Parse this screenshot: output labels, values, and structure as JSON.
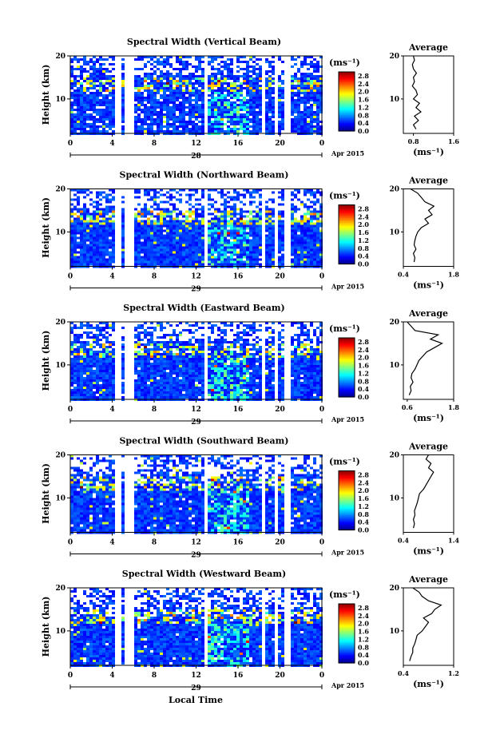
{
  "figure": {
    "xlabel": "Local Time",
    "date_label": "Apr 2015"
  },
  "chart_data": [
    {
      "type": "heatmap",
      "title": "Spectral Width (Vertical Beam)",
      "ylabel": "Height (km)",
      "ylim": [
        2,
        20
      ],
      "yticks": [
        "20",
        "10"
      ],
      "x_ticks": [
        "0",
        "4",
        "8",
        "12",
        "16",
        "20",
        "0"
      ],
      "xlim": [
        0,
        24
      ],
      "day_label": "28",
      "colorbar": {
        "unit": "(ms⁻¹)",
        "ticks": [
          "2.8",
          "2.4",
          "2.0",
          "1.6",
          "1.2",
          "0.8",
          "0.4",
          "0.0"
        ],
        "range": [
          0.0,
          3.0
        ]
      },
      "gaps": [
        [
          4.0,
          4.6
        ],
        [
          5.1,
          5.9
        ],
        [
          12.7,
          13.0
        ],
        [
          18.0,
          18.3
        ],
        [
          19.5,
          19.8
        ],
        [
          20.4,
          20.8
        ]
      ],
      "average_profile": {
        "title": "Average",
        "xlabel": "(ms⁻¹)",
        "xticks": [
          "0.8",
          "1.6"
        ],
        "xlim": [
          0.6,
          1.6
        ],
        "yticks": [
          "20",
          "10"
        ],
        "height": [
          3,
          4,
          5,
          6,
          7,
          8,
          9,
          10,
          11,
          12,
          13,
          14,
          15,
          16,
          17,
          18,
          19,
          20
        ],
        "value": [
          0.85,
          0.8,
          0.9,
          0.82,
          0.95,
          0.85,
          0.92,
          0.8,
          0.88,
          0.85,
          0.78,
          0.82,
          0.8,
          0.86,
          0.8,
          0.78,
          0.82,
          0.8
        ]
      }
    },
    {
      "type": "heatmap",
      "title": "Spectral Width (Northward Beam)",
      "ylabel": "Height (km)",
      "ylim": [
        2,
        20
      ],
      "yticks": [
        "20",
        "10"
      ],
      "x_ticks": [
        "0",
        "4",
        "8",
        "12",
        "16",
        "20",
        "0"
      ],
      "xlim": [
        0,
        24
      ],
      "day_label": "29",
      "colorbar": {
        "unit": "(ms⁻¹)",
        "ticks": [
          "2.8",
          "2.4",
          "2.0",
          "1.6",
          "1.2",
          "0.8",
          "0.4",
          "0.0"
        ],
        "range": [
          0.0,
          3.0
        ]
      },
      "gaps": [
        [
          4.0,
          4.6
        ],
        [
          5.1,
          5.9
        ],
        [
          12.5,
          12.9
        ],
        [
          18.0,
          18.3
        ],
        [
          19.3,
          19.6
        ],
        [
          20.4,
          20.8
        ]
      ],
      "average_profile": {
        "title": "Average",
        "xlabel": "(ms⁻¹)",
        "xticks": [
          "0.4",
          "1.8"
        ],
        "xlim": [
          0.4,
          1.8
        ],
        "yticks": [
          "20",
          "10"
        ],
        "height": [
          3,
          4,
          5,
          6,
          7,
          8,
          9,
          10,
          11,
          12,
          13,
          14,
          15,
          16,
          17,
          18,
          19,
          20
        ],
        "value": [
          0.7,
          0.72,
          0.68,
          0.75,
          0.7,
          0.72,
          0.75,
          0.8,
          0.9,
          1.1,
          1.0,
          1.2,
          1.1,
          1.25,
          1.0,
          0.9,
          0.8,
          0.6
        ]
      }
    },
    {
      "type": "heatmap",
      "title": "Spectral Width (Eastward Beam)",
      "ylabel": "Height (km)",
      "ylim": [
        2,
        20
      ],
      "yticks": [
        "20",
        "10"
      ],
      "x_ticks": [
        "0",
        "4",
        "8",
        "12",
        "16",
        "20",
        "0"
      ],
      "xlim": [
        0,
        24
      ],
      "day_label": "29",
      "colorbar": {
        "unit": "(ms⁻¹)",
        "ticks": [
          "2.8",
          "2.4",
          "2.0",
          "1.6",
          "1.2",
          "0.8",
          "0.4",
          "0.0"
        ],
        "range": [
          0.0,
          3.0
        ]
      },
      "gaps": [
        [
          4.0,
          4.6
        ],
        [
          5.1,
          5.9
        ],
        [
          12.5,
          12.9
        ],
        [
          18.0,
          18.3
        ],
        [
          19.3,
          19.6
        ],
        [
          20.4,
          20.8
        ]
      ],
      "average_profile": {
        "title": "Average",
        "xlabel": "(ms⁻¹)",
        "xticks": [
          "0.6",
          "1.8"
        ],
        "xlim": [
          0.5,
          1.8
        ],
        "yticks": [
          "20",
          "10"
        ],
        "height": [
          3,
          4,
          5,
          6,
          7,
          8,
          9,
          10,
          11,
          12,
          13,
          14,
          15,
          16,
          17,
          18,
          19,
          20
        ],
        "value": [
          0.65,
          0.7,
          0.68,
          0.75,
          0.7,
          0.72,
          0.8,
          0.85,
          0.9,
          1.0,
          1.1,
          1.3,
          1.5,
          1.2,
          1.4,
          0.8,
          0.7,
          0.6
        ]
      }
    },
    {
      "type": "heatmap",
      "title": "Spectral Width (Southward Beam)",
      "ylabel": "Height (km)",
      "ylim": [
        2,
        20
      ],
      "yticks": [
        "20",
        "10"
      ],
      "x_ticks": [
        "0",
        "4",
        "8",
        "12",
        "16",
        "20",
        "0"
      ],
      "xlim": [
        0,
        24
      ],
      "day_label": "29",
      "colorbar": {
        "unit": "(ms⁻¹)",
        "ticks": [
          "2.8",
          "2.4",
          "2.0",
          "1.6",
          "1.2",
          "0.8",
          "0.4",
          "0.0"
        ],
        "range": [
          0.0,
          3.0
        ]
      },
      "gaps": [
        [
          4.0,
          4.6
        ],
        [
          5.1,
          5.9
        ],
        [
          12.5,
          12.9
        ],
        [
          18.0,
          18.3
        ],
        [
          19.3,
          19.6
        ],
        [
          20.4,
          20.8
        ]
      ],
      "average_profile": {
        "title": "Average",
        "xlabel": "(ms⁻¹)",
        "xticks": [
          "0.4",
          "1.4"
        ],
        "xlim": [
          0.4,
          1.4
        ],
        "yticks": [
          "20",
          "10"
        ],
        "height": [
          3,
          4,
          5,
          6,
          7,
          8,
          9,
          10,
          11,
          12,
          13,
          14,
          15,
          16,
          17,
          18,
          19,
          20
        ],
        "value": [
          0.6,
          0.62,
          0.6,
          0.63,
          0.62,
          0.65,
          0.68,
          0.7,
          0.72,
          0.8,
          0.85,
          0.9,
          0.95,
          1.0,
          0.9,
          0.95,
          0.85,
          0.9
        ]
      }
    },
    {
      "type": "heatmap",
      "title": "Spectral Width (Westward Beam)",
      "ylabel": "Height (km)",
      "ylim": [
        2,
        20
      ],
      "yticks": [
        "20",
        "10"
      ],
      "x_ticks": [
        "0",
        "4",
        "8",
        "12",
        "16",
        "20",
        "0"
      ],
      "xlim": [
        0,
        24
      ],
      "day_label": "29",
      "colorbar": {
        "unit": "(ms⁻¹)",
        "ticks": [
          "2.8",
          "2.4",
          "2.0",
          "1.6",
          "1.2",
          "0.8",
          "0.4",
          "0.0"
        ],
        "range": [
          0.0,
          3.0
        ]
      },
      "gaps": [
        [
          4.0,
          4.6
        ],
        [
          5.1,
          5.9
        ],
        [
          12.5,
          12.9
        ],
        [
          18.0,
          18.3
        ],
        [
          19.3,
          19.6
        ],
        [
          20.4,
          20.8
        ]
      ],
      "average_profile": {
        "title": "Average",
        "xlabel": "(ms⁻¹)",
        "xticks": [
          "0.4",
          "1.2"
        ],
        "xlim": [
          0.4,
          1.2
        ],
        "yticks": [
          "20",
          "10"
        ],
        "height": [
          3,
          4,
          5,
          6,
          7,
          8,
          9,
          10,
          11,
          12,
          13,
          14,
          15,
          16,
          17,
          18,
          19,
          20
        ],
        "value": [
          0.5,
          0.52,
          0.55,
          0.55,
          0.58,
          0.6,
          0.62,
          0.7,
          0.75,
          0.8,
          0.72,
          0.85,
          0.9,
          1.0,
          0.8,
          0.7,
          0.65,
          0.55
        ]
      }
    }
  ]
}
